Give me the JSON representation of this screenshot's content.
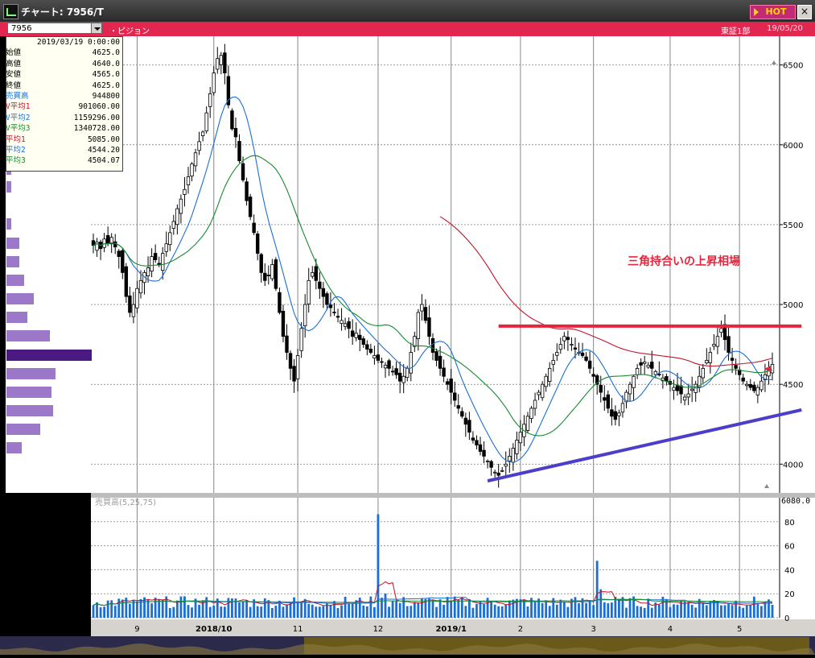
{
  "window": {
    "title": "チャート: 7956/T",
    "hot_label": "HOT",
    "close_label": "×",
    "icon": "chart-icon"
  },
  "infobar": {
    "symbol": "7956",
    "name": "・ピジョン",
    "market": "東証1部",
    "date": "19/05/20"
  },
  "databox": {
    "date": "2019/03/19 0:00:00",
    "rows": [
      {
        "label": "始値",
        "value": "4625.0",
        "color": "#000000"
      },
      {
        "label": "高値",
        "value": "4640.0",
        "color": "#000000"
      },
      {
        "label": "安値",
        "value": "4565.0",
        "color": "#000000"
      },
      {
        "label": "終値",
        "value": "4625.0",
        "color": "#000000"
      },
      {
        "label": "売買高",
        "value": "944800",
        "color": "#1a6fd6"
      },
      {
        "label": "V平均1",
        "value": "901060.00",
        "color": "#c0142c"
      },
      {
        "label": "V平均2",
        "value": "1159296.00",
        "color": "#1a6fd6"
      },
      {
        "label": "V平均3",
        "value": "1340728.00",
        "color": "#178a2c"
      },
      {
        "label": "平均1",
        "value": "5085.00",
        "color": "#c0142c"
      },
      {
        "label": "平均2",
        "value": "4544.20",
        "color": "#1a6fd6"
      },
      {
        "label": "平均3",
        "value": "4504.07",
        "color": "#178a2c"
      }
    ]
  },
  "chart_data": {
    "type": "candlestick",
    "price_axis": {
      "ticks": [
        "6500",
        "6000",
        "5500",
        "5000",
        "4500",
        "4000"
      ],
      "values": [
        6500,
        6000,
        5500,
        5000,
        4500,
        4000
      ],
      "range": [
        3820,
        6680
      ]
    },
    "volume_axis": {
      "title": "売買高(5,25,75)",
      "ticks": [
        "80",
        "60",
        "40",
        "20",
        "0"
      ],
      "values": [
        80,
        60,
        40,
        20,
        0
      ],
      "top_label": "6080.0",
      "range": [
        0,
        100
      ]
    },
    "x_ticks": [
      {
        "label": "9",
        "bold": false,
        "index": 12
      },
      {
        "label": "2018/10",
        "bold": true,
        "index": 33
      },
      {
        "label": "11",
        "bold": false,
        "index": 56
      },
      {
        "label": "12",
        "bold": false,
        "index": 78
      },
      {
        "label": "2019/1",
        "bold": true,
        "index": 98
      },
      {
        "label": "2",
        "bold": false,
        "index": 117
      },
      {
        "label": "3",
        "bold": false,
        "index": 137
      },
      {
        "label": "4",
        "bold": false,
        "index": 158
      },
      {
        "label": "5",
        "bold": false,
        "index": 177
      }
    ],
    "annotation": {
      "text": "三角持合いの上昇相場",
      "color": "#e8243c"
    },
    "trendlines": [
      {
        "name": "resistance",
        "color": "#e8243c",
        "from": {
          "index": 111,
          "price": 4865
        },
        "to": {
          "index": 194,
          "price": 4865
        }
      },
      {
        "name": "support",
        "color": "#4b3fc9",
        "from": {
          "index": 108,
          "price": 3895
        },
        "to": {
          "index": 194,
          "price": 4340
        }
      }
    ],
    "ohlc_anchor_closes": [
      5370,
      5390,
      5350,
      5410,
      5380,
      5420,
      5360,
      5300,
      5200,
      5050,
      4950,
      5000,
      5100,
      5150,
      5200,
      5230,
      5300,
      5280,
      5250,
      5320,
      5380,
      5450,
      5520,
      5600,
      5660,
      5720,
      5800,
      5880,
      5950,
      6020,
      6080,
      6200,
      6320,
      6450,
      6540,
      6560,
      6450,
      6250,
      6100,
      6050,
      5900,
      5780,
      5650,
      5550,
      5450,
      5320,
      5200,
      5150,
      5180,
      5250,
      5100,
      4950,
      4800,
      4700,
      4600,
      4520,
      4680,
      4850,
      5000,
      5150,
      5200,
      5150,
      5100,
      5050,
      5000,
      4980,
      4950,
      4920,
      4900,
      4880,
      4850,
      4800,
      4820,
      4780,
      4750,
      4720,
      4700,
      4680,
      4650,
      4640,
      4620,
      4600,
      4580,
      4560,
      4520,
      4550,
      4600,
      4700,
      4800,
      4950,
      5000,
      4900,
      4800,
      4700,
      4650,
      4600,
      4550,
      4500,
      4450,
      4400,
      4350,
      4300,
      4250,
      4200,
      4150,
      4120,
      4080,
      4050,
      4020,
      3980,
      3950,
      3930,
      3960,
      4000,
      4050,
      4100,
      4150,
      4200,
      4250,
      4300,
      4350,
      4400,
      4450,
      4500,
      4550,
      4600,
      4650,
      4700,
      4750,
      4800,
      4780,
      4750,
      4720,
      4700,
      4680,
      4650,
      4600,
      4550,
      4500,
      4450,
      4400,
      4350,
      4300,
      4280,
      4320,
      4380,
      4450,
      4500,
      4550,
      4600,
      4620,
      4640,
      4620,
      4600,
      4580,
      4560,
      4540,
      4520,
      4500,
      4480,
      4460,
      4440,
      4420,
      4440,
      4470,
      4500,
      4550,
      4600,
      4650,
      4700,
      4750,
      4800,
      4850,
      4780,
      4700,
      4650,
      4600,
      4560,
      4520,
      4500,
      4480,
      4460,
      4480,
      4520,
      4560,
      4600,
      4625
    ],
    "moving_averages": [
      {
        "name": "平均1",
        "color": "#c0142c"
      },
      {
        "name": "平均2",
        "color": "#1a6fd6"
      },
      {
        "name": "平均3",
        "color": "#178a2c"
      }
    ],
    "volume_profile": {
      "color": "#9b79c8",
      "highlight_color": "#4a1a80"
    }
  },
  "colors": {
    "accent_red": "#e1264f",
    "grid": "#c8c8c8",
    "candle_up": "#ffffff",
    "candle_down": "#000000",
    "volume_bar": "#1a6fd6"
  }
}
